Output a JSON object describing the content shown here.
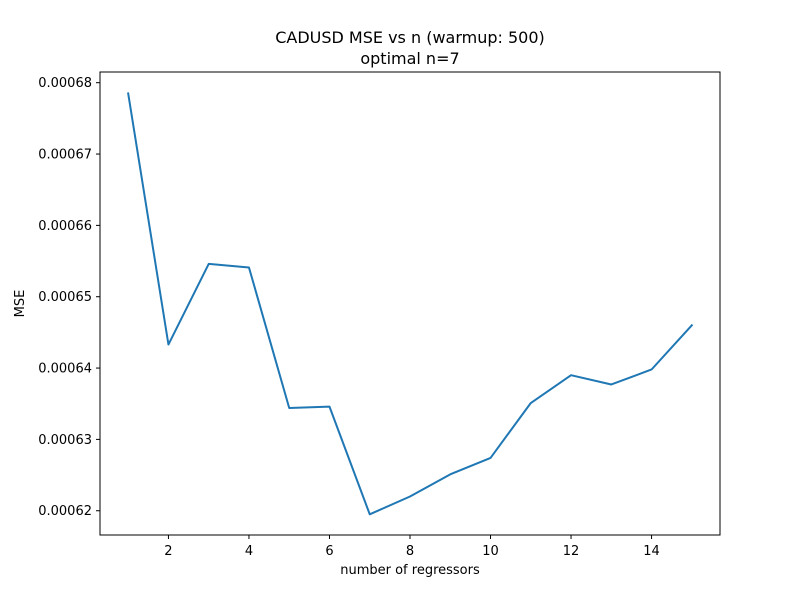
{
  "chart_data": {
    "type": "line",
    "title": "CADUSD MSE vs n (warmup: 500)",
    "subtitle": "optimal n=7",
    "xlabel": "number of regressors",
    "ylabel": "MSE",
    "x": [
      1,
      2,
      3,
      4,
      5,
      6,
      7,
      8,
      9,
      10,
      11,
      12,
      13,
      14,
      15
    ],
    "series": [
      {
        "values": [
          0.0006785,
          0.0006433,
          0.0006546,
          0.0006541,
          0.0006344,
          0.0006346,
          0.0006195,
          0.000622,
          0.0006251,
          0.0006274,
          0.0006351,
          0.000639,
          0.0006377,
          0.0006398,
          0.000646
        ],
        "color": "#1f77b4"
      }
    ],
    "xlim": [
      0.3,
      15.7
    ],
    "ylim": [
      0.0006166,
      0.0006815
    ],
    "xticks": [
      2,
      4,
      6,
      8,
      10,
      12,
      14
    ],
    "xtick_labels": [
      "2",
      "4",
      "6",
      "8",
      "10",
      "12",
      "14"
    ],
    "yticks": [
      0.00062,
      0.00063,
      0.00064,
      0.00065,
      0.00066,
      0.00067,
      0.00068
    ],
    "ytick_labels": [
      "0.00062",
      "0.00063",
      "0.00064",
      "0.00065",
      "0.00066",
      "0.00067",
      "0.00068"
    ],
    "grid": false,
    "legend": "none"
  }
}
